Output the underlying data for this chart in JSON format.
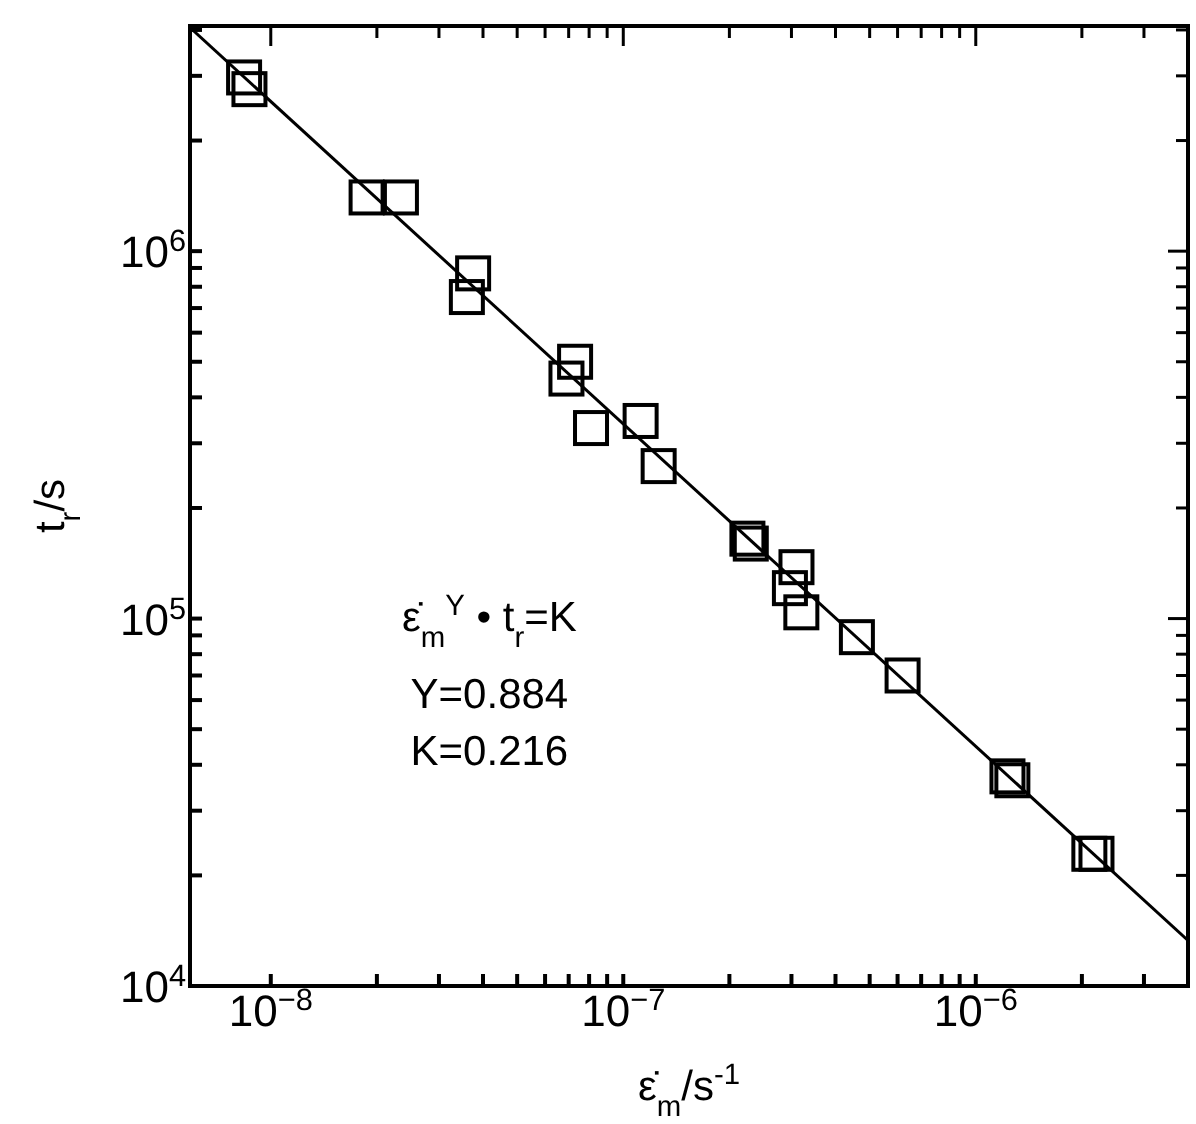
{
  "chart_data": {
    "type": "scatter",
    "log": "xy",
    "marker": "square",
    "xlabel": "ε̇$_{m}$/s$^{-1}$",
    "ylabel": "t$_{r}$/s",
    "annotations": [
      "ε̇$_{m}$$^{Y}$ • t$_{r}$=K",
      "Y=0.884",
      "K=0.216"
    ],
    "xlim": [
      5.9e-09,
      4e-06
    ],
    "xticks": [
      {
        "value": 1e-08,
        "label": "10$^{−8}$"
      },
      {
        "value": 2e-08,
        "label": null
      },
      {
        "value": 3e-08,
        "label": null
      },
      {
        "value": 4e-08,
        "label": null
      },
      {
        "value": 5e-08,
        "label": null
      },
      {
        "value": 6e-08,
        "label": null
      },
      {
        "value": 7e-08,
        "label": null
      },
      {
        "value": 8e-08,
        "label": null
      },
      {
        "value": 9e-08,
        "label": null
      },
      {
        "value": 1e-07,
        "label": "10$^{−7}$"
      },
      {
        "value": 2e-07,
        "label": null
      },
      {
        "value": 3e-07,
        "label": null
      },
      {
        "value": 4e-07,
        "label": null
      },
      {
        "value": 5e-07,
        "label": null
      },
      {
        "value": 6e-07,
        "label": null
      },
      {
        "value": 7e-07,
        "label": null
      },
      {
        "value": 8e-07,
        "label": null
      },
      {
        "value": 9e-07,
        "label": null
      },
      {
        "value": 1e-06,
        "label": "10$^{−6}$"
      },
      {
        "value": 2e-06,
        "label": null
      },
      {
        "value": 3e-06,
        "label": null
      }
    ],
    "ylim": [
      10000.0,
      4100000.0
    ],
    "yticks": [
      {
        "value": 10000,
        "label": "10$^{4}$"
      },
      {
        "value": 20000,
        "label": null
      },
      {
        "value": 30000,
        "label": null
      },
      {
        "value": 40000,
        "label": null
      },
      {
        "value": 50000,
        "label": null
      },
      {
        "value": 60000,
        "label": null
      },
      {
        "value": 70000,
        "label": null
      },
      {
        "value": 80000,
        "label": null
      },
      {
        "value": 90000,
        "label": null
      },
      {
        "value": 100000,
        "label": "10$^{5}$"
      },
      {
        "value": 200000,
        "label": null
      },
      {
        "value": 300000,
        "label": null
      },
      {
        "value": 400000,
        "label": null
      },
      {
        "value": 500000,
        "label": null
      },
      {
        "value": 600000,
        "label": null
      },
      {
        "value": 700000,
        "label": null
      },
      {
        "value": 800000,
        "label": null
      },
      {
        "value": 900000,
        "label": null
      },
      {
        "value": 1000000,
        "label": "10$^{6}$"
      },
      {
        "value": 2000000,
        "label": null
      },
      {
        "value": 3000000,
        "label": null
      },
      {
        "value": 4000000,
        "label": null
      }
    ],
    "series": [
      {
        "type": "scatter",
        "color": "#000000",
        "x": [
          8.4e-09,
          8.7e-09,
          1.87e-08,
          2.34e-08,
          3.75e-08,
          3.6e-08,
          6.9e-08,
          7.3e-08,
          8.1e-08,
          1.12e-07,
          1.26e-07,
          2.25e-07,
          2.3e-07,
          3.1e-07,
          2.97e-07,
          3.2e-07,
          4.6e-07,
          6.2e-07,
          1.23e-06,
          1.27e-06,
          2.1e-06,
          2.2e-06
        ],
        "values": [
          2970000,
          2760000,
          1400000,
          1400000,
          870000,
          750000,
          450000,
          500000,
          330000,
          345000,
          260000,
          165000,
          160000,
          138000,
          121000,
          104000,
          89000,
          70000,
          37200,
          36300,
          22900,
          22900
        ]
      },
      {
        "type": "line",
        "color": "#000000",
        "marker": "none",
        "x": [
          5.9e-09,
          4e-06
        ],
        "values": [
          4060000,
          13300
        ]
      }
    ]
  }
}
